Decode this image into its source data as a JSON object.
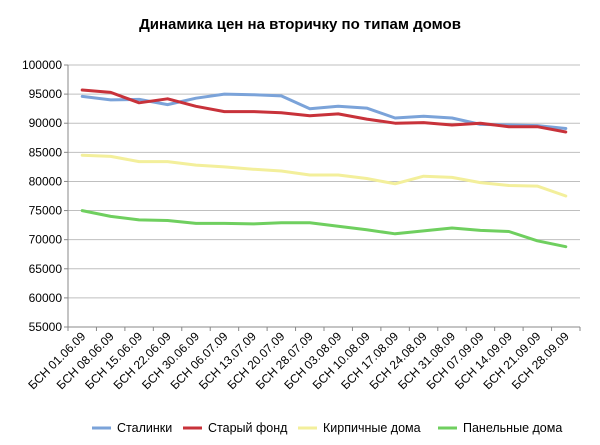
{
  "chart_data": {
    "type": "line",
    "title": "Динамика цен на вторичку по типам домов",
    "xlabel": "",
    "ylabel": "",
    "ylim": [
      55000,
      100000
    ],
    "yticks": [
      55000,
      60000,
      65000,
      70000,
      75000,
      80000,
      85000,
      90000,
      95000,
      100000
    ],
    "grid": true,
    "legend_position": "bottom",
    "categories": [
      "БСН 01.06.09",
      "БСН 08.06.09",
      "БСН 15.06.09",
      "БСН 22.06.09",
      "БСН 30.06.09",
      "БСН 06.07.09",
      "БСН 13.07.09",
      "БСН 20.07.09",
      "БСН 28.07.09",
      "БСН 03.08.09",
      "БСН 10.08.09",
      "БСН 17.08.09",
      "БСН 24.08.09",
      "БСН 31.08.09",
      "БСН 07.09.09",
      "БСН 14.09.09",
      "БСН 21.09.09",
      "БСН 28.09.09"
    ],
    "series": [
      {
        "name": "Сталинки",
        "color": "#7ba3d9",
        "values": [
          94600,
          94000,
          94100,
          93200,
          94300,
          95000,
          94900,
          94700,
          92500,
          92900,
          92600,
          90900,
          91200,
          90900,
          89800,
          89700,
          89600,
          89100
        ]
      },
      {
        "name": "Старый фонд",
        "color": "#c8323a",
        "values": [
          95700,
          95300,
          93500,
          94200,
          92900,
          92000,
          92000,
          91800,
          91300,
          91600,
          90700,
          90000,
          90100,
          89700,
          90000,
          89400,
          89400,
          88500
        ]
      },
      {
        "name": "Кирпичные дома",
        "color": "#f3ef9b",
        "values": [
          84500,
          84300,
          83400,
          83400,
          82800,
          82500,
          82100,
          81800,
          81100,
          81100,
          80500,
          79600,
          80900,
          80700,
          79800,
          79300,
          79200,
          77500
        ]
      },
      {
        "name": "Панельные дома",
        "color": "#6fcf5f",
        "values": [
          75000,
          74000,
          73400,
          73300,
          72800,
          72800,
          72700,
          72900,
          72900,
          72300,
          71700,
          71000,
          71500,
          72000,
          71600,
          71400,
          69800,
          68800
        ]
      }
    ]
  }
}
